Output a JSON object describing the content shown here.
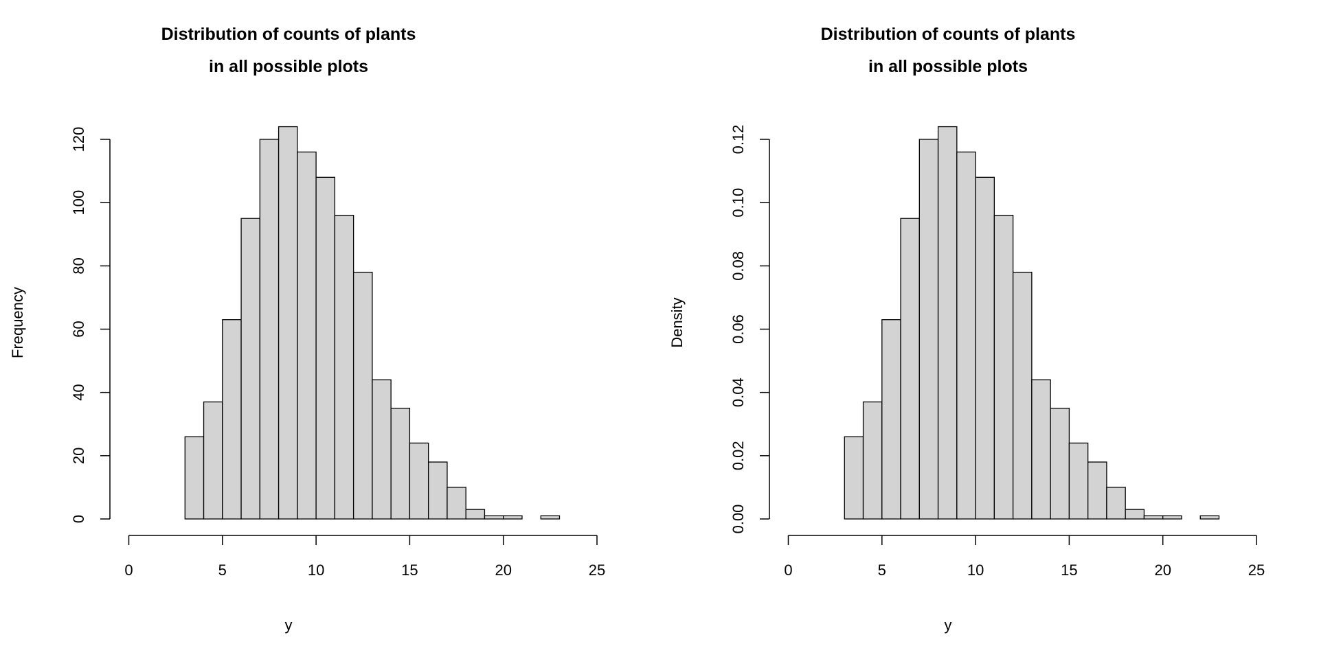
{
  "chart_data": [
    {
      "type": "bar",
      "title": [
        "Distribution of counts of plants",
        "in all possible plots"
      ],
      "xlabel": "y",
      "ylabel": "Frequency",
      "bin_edges": [
        3,
        4,
        5,
        6,
        7,
        8,
        9,
        10,
        11,
        12,
        13,
        14,
        15,
        16,
        17,
        18,
        19,
        20,
        21,
        22,
        23
      ],
      "values": [
        26,
        37,
        63,
        95,
        120,
        124,
        116,
        108,
        96,
        78,
        44,
        35,
        24,
        18,
        10,
        3,
        1,
        1,
        0,
        1
      ],
      "xlim": [
        0,
        25
      ],
      "ylim": [
        0,
        124
      ],
      "xticks": [
        0,
        5,
        10,
        15,
        20,
        25
      ],
      "xtick_labels": [
        "0",
        "5",
        "10",
        "15",
        "20",
        "25"
      ],
      "yticks": [
        0,
        20,
        40,
        60,
        80,
        100,
        120
      ],
      "ytick_labels": [
        "0",
        "20",
        "40",
        "60",
        "80",
        "100",
        "120"
      ],
      "bar_color": "#d3d3d3",
      "edge_color": "#000000",
      "grid": false,
      "legend": "none"
    },
    {
      "type": "bar",
      "title": [
        "Distribution of counts of plants",
        "in all possible plots"
      ],
      "xlabel": "y",
      "ylabel": "Density",
      "bin_edges": [
        3,
        4,
        5,
        6,
        7,
        8,
        9,
        10,
        11,
        12,
        13,
        14,
        15,
        16,
        17,
        18,
        19,
        20,
        21,
        22,
        23
      ],
      "values": [
        0.026,
        0.037,
        0.063,
        0.095,
        0.12,
        0.124,
        0.116,
        0.108,
        0.096,
        0.078,
        0.044,
        0.035,
        0.024,
        0.018,
        0.01,
        0.003,
        0.001,
        0.001,
        0,
        0.001
      ],
      "xlim": [
        0,
        25
      ],
      "ylim": [
        0,
        0.124
      ],
      "xticks": [
        0,
        5,
        10,
        15,
        20,
        25
      ],
      "xtick_labels": [
        "0",
        "5",
        "10",
        "15",
        "20",
        "25"
      ],
      "yticks": [
        0,
        0.02,
        0.04,
        0.06,
        0.08,
        0.1,
        0.12
      ],
      "ytick_labels": [
        "0.00",
        "0.02",
        "0.04",
        "0.06",
        "0.08",
        "0.10",
        "0.12"
      ],
      "bar_color": "#d3d3d3",
      "edge_color": "#000000",
      "grid": false,
      "legend": "none"
    }
  ]
}
